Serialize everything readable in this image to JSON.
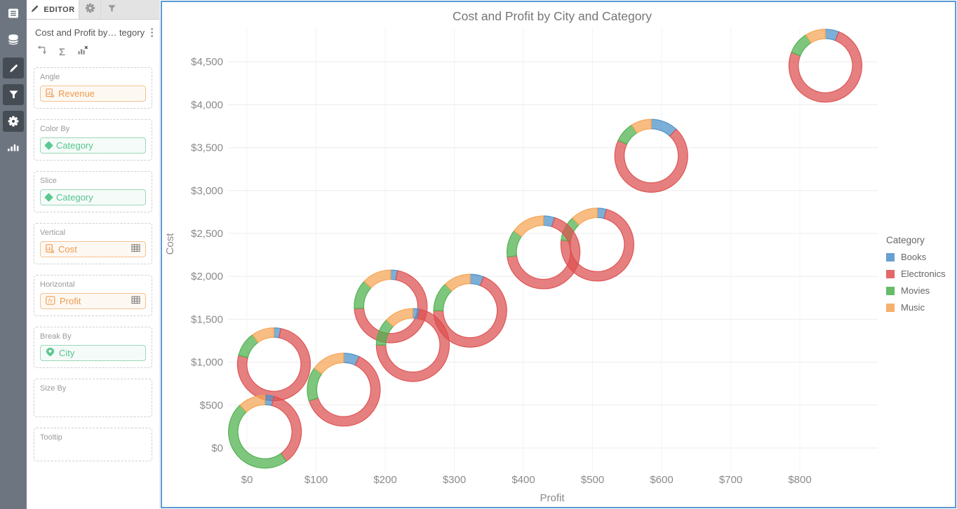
{
  "rail": {
    "icons": [
      "list-icon",
      "database-icon",
      "pencil-icon",
      "filter-icon",
      "gear-icon",
      "bar-chart-icon"
    ]
  },
  "editor": {
    "tab_label": "EDITOR",
    "title": "Cost and Profit by… tegory",
    "fields": [
      {
        "label": "Angle",
        "value": "Revenue",
        "style": "orange",
        "icon": "metric-icon"
      },
      {
        "label": "Color By",
        "value": "Category",
        "style": "green",
        "icon": "diamond-icon"
      },
      {
        "label": "Slice",
        "value": "Category",
        "style": "green",
        "icon": "diamond-icon"
      },
      {
        "label": "Vertical",
        "value": "Cost",
        "style": "orange",
        "icon": "metric-icon",
        "trailing_icon": "grid-icon"
      },
      {
        "label": "Horizontal",
        "value": "Profit",
        "style": "orange",
        "icon": "fx-icon",
        "trailing_icon": "grid-icon"
      },
      {
        "label": "Break By",
        "value": "City",
        "style": "green",
        "icon": "pin-icon"
      },
      {
        "label": "Size By",
        "value": ""
      },
      {
        "label": "Tooltip",
        "value": ""
      }
    ]
  },
  "chart_data": {
    "type": "scatter-pie",
    "title": "Cost and Profit by City and Category",
    "xlabel": "Profit",
    "ylabel": "Cost",
    "xlim": [
      -90,
      910
    ],
    "ylim": [
      -280,
      4880
    ],
    "grid": true,
    "x_tick_values": [
      0,
      100,
      200,
      300,
      400,
      500,
      600,
      700,
      800
    ],
    "x_tick_labels": [
      "$0",
      "$100",
      "$200",
      "$300",
      "$400",
      "$500",
      "$600",
      "$700",
      "$800"
    ],
    "y_tick_values": [
      0,
      500,
      1000,
      1500,
      2000,
      2500,
      3000,
      3500,
      4000,
      4500
    ],
    "y_tick_labels": [
      "$0",
      "$500",
      "$1,000",
      "$1,500",
      "$2,000",
      "$2,500",
      "$3,000",
      "$3,500",
      "$4,000",
      "$4,500"
    ],
    "legend": {
      "title": "Category",
      "position": "right",
      "entries": [
        {
          "label": "Books",
          "color": "#4a90c8"
        },
        {
          "label": "Electronics",
          "color": "#dd4f4f"
        },
        {
          "label": "Movies",
          "color": "#4cb04c"
        },
        {
          "label": "Music",
          "color": "#f5a352"
        }
      ]
    },
    "series_order": [
      "Books",
      "Electronics",
      "Movies",
      "Music"
    ],
    "donuts": [
      {
        "profit": 26,
        "cost": 190,
        "slices": {
          "Books": 4,
          "Electronics": 36,
          "Movies": 48,
          "Music": 12
        }
      },
      {
        "profit": 39,
        "cost": 975,
        "slices": {
          "Books": 3,
          "Electronics": 76,
          "Movies": 11,
          "Music": 10
        }
      },
      {
        "profit": 140,
        "cost": 680,
        "slices": {
          "Books": 7,
          "Electronics": 63,
          "Movies": 15,
          "Music": 15
        }
      },
      {
        "profit": 208,
        "cost": 1650,
        "slices": {
          "Books": 3,
          "Electronics": 71,
          "Movies": 13,
          "Music": 13
        }
      },
      {
        "profit": 240,
        "cost": 1200,
        "slices": {
          "Books": 3,
          "Electronics": 72,
          "Movies": 12,
          "Music": 13
        }
      },
      {
        "profit": 323,
        "cost": 1600,
        "slices": {
          "Books": 6,
          "Electronics": 69,
          "Movies": 13,
          "Music": 12
        }
      },
      {
        "profit": 429,
        "cost": 2280,
        "slices": {
          "Books": 5,
          "Electronics": 68,
          "Movies": 12,
          "Music": 15
        }
      },
      {
        "profit": 507,
        "cost": 2370,
        "slices": {
          "Books": 4,
          "Electronics": 73,
          "Movies": 11,
          "Music": 12
        }
      },
      {
        "profit": 585,
        "cost": 3405,
        "slices": {
          "Books": 12,
          "Electronics": 70,
          "Movies": 9,
          "Music": 9
        }
      },
      {
        "profit": 837,
        "cost": 4455,
        "slices": {
          "Books": 6,
          "Electronics": 75,
          "Movies": 10,
          "Music": 9
        }
      }
    ]
  }
}
